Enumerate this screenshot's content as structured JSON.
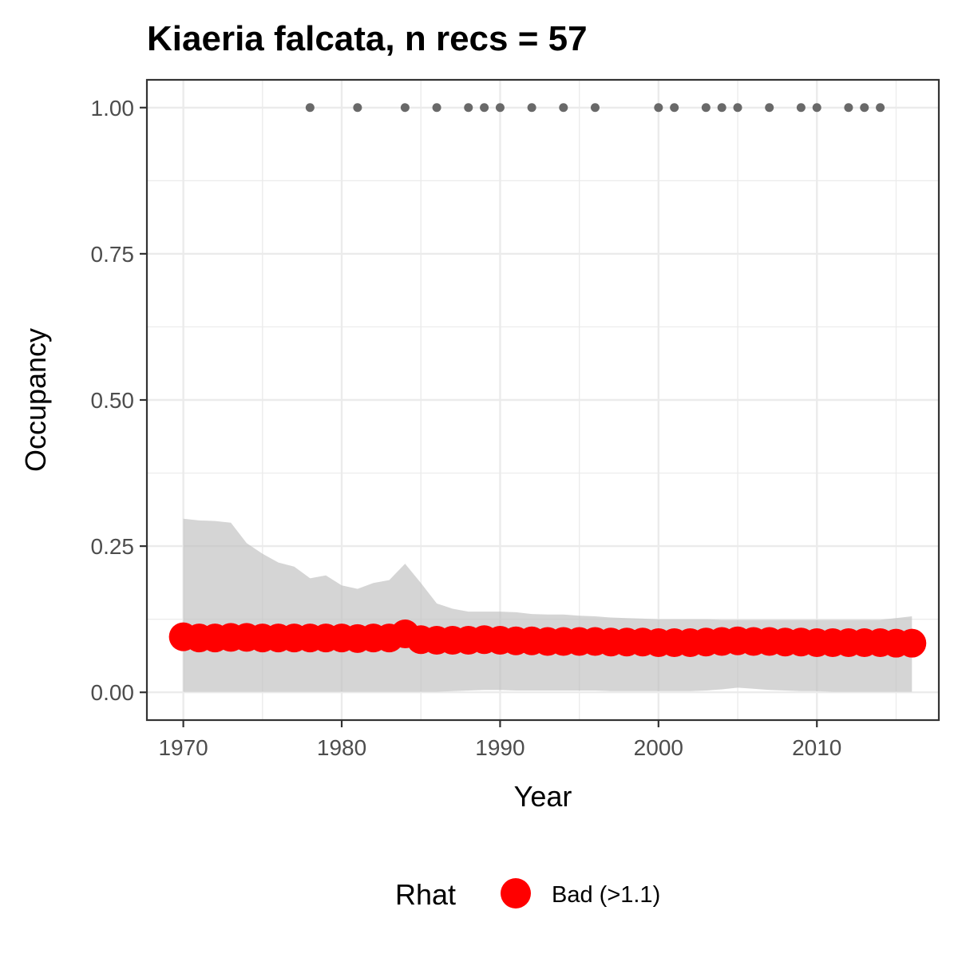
{
  "chart_data": {
    "type": "line",
    "title": "Kiaeria falcata, n recs = 57",
    "xlabel": "Year",
    "ylabel": "Occupancy",
    "xlim": [
      1967.7,
      2017.7
    ],
    "ylim": [
      -0.0475,
      1.0475
    ],
    "x_ticks": [
      1970,
      1980,
      1990,
      2000,
      2010
    ],
    "x_tick_labels": [
      "1970",
      "1980",
      "1990",
      "2000",
      "2010"
    ],
    "y_ticks": [
      0,
      0.25,
      0.5,
      0.75,
      1
    ],
    "y_tick_labels": [
      "0.00",
      "0.25",
      "0.50",
      "0.75",
      "1.00"
    ],
    "grid": true,
    "legend": {
      "title": "Rhat",
      "position": "bottom",
      "entries": [
        {
          "label": "Bad (>1.1)",
          "color": "#ff0000"
        }
      ]
    },
    "colors": {
      "ribbon": "#bfbfbf",
      "points": "#ff0000",
      "records": "#696969",
      "grid": "#ebebeb",
      "border": "#333333"
    },
    "years": [
      1970,
      1971,
      1972,
      1973,
      1974,
      1975,
      1976,
      1977,
      1978,
      1979,
      1980,
      1981,
      1982,
      1983,
      1984,
      1985,
      1986,
      1987,
      1988,
      1989,
      1990,
      1991,
      1992,
      1993,
      1994,
      1995,
      1996,
      1997,
      1998,
      1999,
      2000,
      2001,
      2002,
      2003,
      2004,
      2005,
      2006,
      2007,
      2008,
      2009,
      2010,
      2011,
      2012,
      2013,
      2014,
      2015,
      2016
    ],
    "occupancy_mean": [
      0.095,
      0.093,
      0.093,
      0.094,
      0.094,
      0.093,
      0.093,
      0.093,
      0.093,
      0.093,
      0.093,
      0.092,
      0.093,
      0.093,
      0.1,
      0.09,
      0.089,
      0.089,
      0.089,
      0.09,
      0.089,
      0.088,
      0.088,
      0.087,
      0.087,
      0.087,
      0.087,
      0.086,
      0.086,
      0.086,
      0.085,
      0.085,
      0.085,
      0.086,
      0.087,
      0.088,
      0.087,
      0.087,
      0.086,
      0.086,
      0.085,
      0.085,
      0.085,
      0.085,
      0.085,
      0.084,
      0.084
    ],
    "ci_upper": [
      0.297,
      0.294,
      0.293,
      0.29,
      0.255,
      0.237,
      0.222,
      0.215,
      0.195,
      0.2,
      0.183,
      0.177,
      0.187,
      0.192,
      0.22,
      0.187,
      0.152,
      0.143,
      0.138,
      0.138,
      0.138,
      0.137,
      0.134,
      0.133,
      0.133,
      0.131,
      0.13,
      0.128,
      0.127,
      0.126,
      0.125,
      0.125,
      0.125,
      0.125,
      0.124,
      0.124,
      0.124,
      0.124,
      0.124,
      0.124,
      0.124,
      0.124,
      0.124,
      0.124,
      0.124,
      0.127,
      0.13
    ],
    "ci_lower": [
      0.001,
      0.001,
      0.001,
      0.001,
      0.001,
      0.001,
      0.001,
      0.001,
      0.001,
      0.001,
      0.001,
      0.001,
      0.001,
      0.001,
      0.001,
      0.001,
      0.001,
      0.002,
      0.003,
      0.004,
      0.004,
      0.003,
      0.003,
      0.003,
      0.003,
      0.003,
      0.003,
      0.002,
      0.002,
      0.002,
      0.002,
      0.002,
      0.002,
      0.003,
      0.005,
      0.008,
      0.006,
      0.004,
      0.003,
      0.002,
      0.002,
      0.001,
      0.001,
      0.001,
      0.001,
      0.001,
      0.001
    ],
    "record_years": [
      1978,
      1981,
      1984,
      1986,
      1988,
      1989,
      1990,
      1992,
      1994,
      1996,
      2000,
      2001,
      2003,
      2004,
      2005,
      2007,
      2009,
      2010,
      2012,
      2013,
      2014
    ],
    "record_value": 1.0
  }
}
